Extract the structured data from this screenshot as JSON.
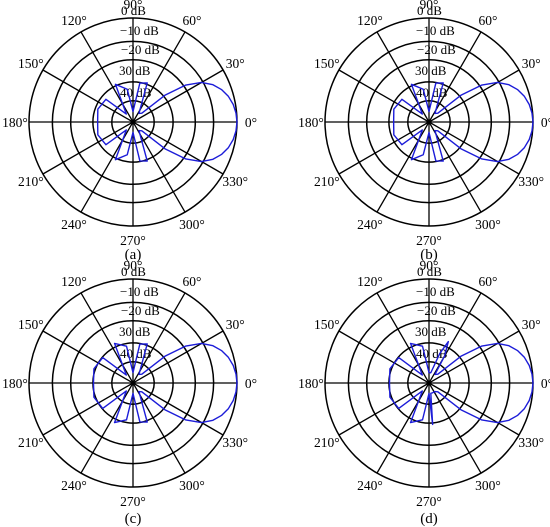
{
  "chart_data": [
    {
      "type": "polar",
      "caption": "(a)",
      "angle_labels": [
        "0°",
        "30°",
        "60°",
        "90°",
        "120°",
        "150°",
        "180°",
        "210°",
        "240°",
        "270°",
        "300°",
        "330°"
      ],
      "radial_labels": [
        "0 dB",
        "−10 dB",
        "−20 dB",
        "30 dB",
        "40 dB"
      ],
      "rlim_db": [
        -50,
        0
      ],
      "series": [
        {
          "color": "#1c1cd8",
          "points_db": [
            [
              0,
              0
            ],
            [
              5,
              -0.3
            ],
            [
              10,
              -1.1
            ],
            [
              15,
              -2.5
            ],
            [
              20,
              -4.6
            ],
            [
              25,
              -7.6
            ],
            [
              30,
              -12
            ],
            [
              35,
              -19
            ],
            [
              40,
              -30
            ],
            [
              45,
              -44
            ],
            [
              55,
              -45
            ],
            [
              70,
              -30
            ],
            [
              80,
              -31
            ],
            [
              90,
              -45
            ],
            [
              100,
              -34
            ],
            [
              115,
              -30
            ],
            [
              130,
              -45
            ],
            [
              140,
              -33
            ],
            [
              160,
              -32
            ],
            [
              180,
              -33
            ],
            [
              200,
              -32
            ],
            [
              220,
              -33
            ],
            [
              230,
              -45
            ],
            [
              245,
              -30
            ],
            [
              260,
              -34
            ],
            [
              270,
              -45
            ],
            [
              280,
              -31
            ],
            [
              290,
              -30
            ],
            [
              305,
              -45
            ],
            [
              315,
              -44
            ],
            [
              320,
              -30
            ],
            [
              325,
              -19
            ],
            [
              330,
              -12
            ],
            [
              335,
              -7.6
            ],
            [
              340,
              -4.6
            ],
            [
              345,
              -2.5
            ],
            [
              350,
              -1.1
            ],
            [
              355,
              -0.3
            ]
          ]
        }
      ]
    },
    {
      "type": "polar",
      "caption": "(b)",
      "angle_labels": [
        "0°",
        "30°",
        "60°",
        "90°",
        "120°",
        "150°",
        "180°",
        "210°",
        "240°",
        "270°",
        "300°",
        "330°"
      ],
      "radial_labels": [
        "0 dB",
        "−10 dB",
        "−20 dB",
        "30 dB",
        "40 dB"
      ],
      "rlim_db": [
        -50,
        0
      ],
      "series": [
        {
          "color": "#1c1cd8",
          "points_db": [
            [
              0,
              0
            ],
            [
              5,
              -0.3
            ],
            [
              10,
              -1.1
            ],
            [
              15,
              -2.5
            ],
            [
              20,
              -4.6
            ],
            [
              25,
              -7.6
            ],
            [
              30,
              -12
            ],
            [
              35,
              -19
            ],
            [
              40,
              -30
            ],
            [
              45,
              -44
            ],
            [
              55,
              -45
            ],
            [
              70,
              -30
            ],
            [
              80,
              -31
            ],
            [
              90,
              -45
            ],
            [
              100,
              -34
            ],
            [
              115,
              -30
            ],
            [
              130,
              -45
            ],
            [
              140,
              -33
            ],
            [
              160,
              -32
            ],
            [
              180,
              -33
            ],
            [
              200,
              -32
            ],
            [
              220,
              -33
            ],
            [
              230,
              -45
            ],
            [
              245,
              -30
            ],
            [
              260,
              -34
            ],
            [
              270,
              -45
            ],
            [
              280,
              -31
            ],
            [
              290,
              -30
            ],
            [
              305,
              -45
            ],
            [
              315,
              -44
            ],
            [
              320,
              -30
            ],
            [
              325,
              -19
            ],
            [
              330,
              -12
            ],
            [
              335,
              -7.6
            ],
            [
              340,
              -4.6
            ],
            [
              345,
              -2.5
            ],
            [
              350,
              -1.1
            ],
            [
              355,
              -0.3
            ]
          ]
        }
      ]
    },
    {
      "type": "polar",
      "caption": "(c)",
      "angle_labels": [
        "0°",
        "30°",
        "60°",
        "90°",
        "120°",
        "150°",
        "180°",
        "210°",
        "240°",
        "270°",
        "300°",
        "330°"
      ],
      "radial_labels": [
        "0 dB",
        "−10 dB",
        "−20 dB",
        "30 dB",
        "40 dB"
      ],
      "rlim_db": [
        -50,
        0
      ],
      "series": [
        {
          "color": "#1c1cd8",
          "points_db": [
            [
              0,
              0
            ],
            [
              5,
              -0.3
            ],
            [
              10,
              -1.1
            ],
            [
              15,
              -2.5
            ],
            [
              20,
              -4.6
            ],
            [
              25,
              -7.6
            ],
            [
              30,
              -12
            ],
            [
              35,
              -19
            ],
            [
              40,
              -30
            ],
            [
              45,
              -44
            ],
            [
              55,
              -45
            ],
            [
              70,
              -30
            ],
            [
              80,
              -31
            ],
            [
              90,
              -45
            ],
            [
              100,
              -32
            ],
            [
              115,
              -29
            ],
            [
              130,
              -45
            ],
            [
              140,
              -31
            ],
            [
              160,
              -30
            ],
            [
              180,
              -31
            ],
            [
              200,
              -30
            ],
            [
              220,
              -31
            ],
            [
              230,
              -45
            ],
            [
              245,
              -29
            ],
            [
              260,
              -32
            ],
            [
              270,
              -45
            ],
            [
              280,
              -31
            ],
            [
              290,
              -30
            ],
            [
              305,
              -45
            ],
            [
              315,
              -44
            ],
            [
              320,
              -30
            ],
            [
              325,
              -19
            ],
            [
              330,
              -12
            ],
            [
              335,
              -7.6
            ],
            [
              340,
              -4.6
            ],
            [
              345,
              -2.5
            ],
            [
              350,
              -1.1
            ],
            [
              355,
              -0.3
            ]
          ]
        }
      ]
    },
    {
      "type": "polar",
      "caption": "(d)",
      "angle_labels": [
        "0°",
        "30°",
        "60°",
        "90°",
        "120°",
        "150°",
        "180°",
        "210°",
        "240°",
        "270°",
        "300°",
        "330°"
      ],
      "radial_labels": [
        "0 dB",
        "−10 dB",
        "−20 dB",
        "30 dB",
        "40 dB"
      ],
      "rlim_db": [
        -50,
        0
      ],
      "series": [
        {
          "color": "#1c1cd8",
          "points_db": [
            [
              0,
              0
            ],
            [
              5,
              -0.3
            ],
            [
              10,
              -1.1
            ],
            [
              15,
              -2.5
            ],
            [
              20,
              -4.6
            ],
            [
              25,
              -7.6
            ],
            [
              30,
              -12
            ],
            [
              35,
              -19
            ],
            [
              40,
              -30
            ],
            [
              45,
              -44
            ],
            [
              55,
              -45
            ],
            [
              60,
              -35
            ],
            [
              65,
              -28
            ],
            [
              70,
              -35
            ],
            [
              80,
              -45
            ],
            [
              90,
              -45
            ],
            [
              100,
              -32
            ],
            [
              115,
              -29
            ],
            [
              130,
              -45
            ],
            [
              140,
              -31
            ],
            [
              160,
              -30
            ],
            [
              180,
              -31
            ],
            [
              200,
              -30
            ],
            [
              220,
              -31
            ],
            [
              230,
              -45
            ],
            [
              245,
              -29
            ],
            [
              260,
              -32
            ],
            [
              270,
              -45
            ],
            [
              275,
              -30
            ],
            [
              280,
              -45
            ],
            [
              290,
              -45
            ],
            [
              305,
              -45
            ],
            [
              315,
              -44
            ],
            [
              320,
              -30
            ],
            [
              325,
              -19
            ],
            [
              330,
              -12
            ],
            [
              335,
              -7.6
            ],
            [
              340,
              -4.6
            ],
            [
              345,
              -2.5
            ],
            [
              350,
              -1.1
            ],
            [
              355,
              -0.3
            ]
          ]
        }
      ]
    }
  ]
}
